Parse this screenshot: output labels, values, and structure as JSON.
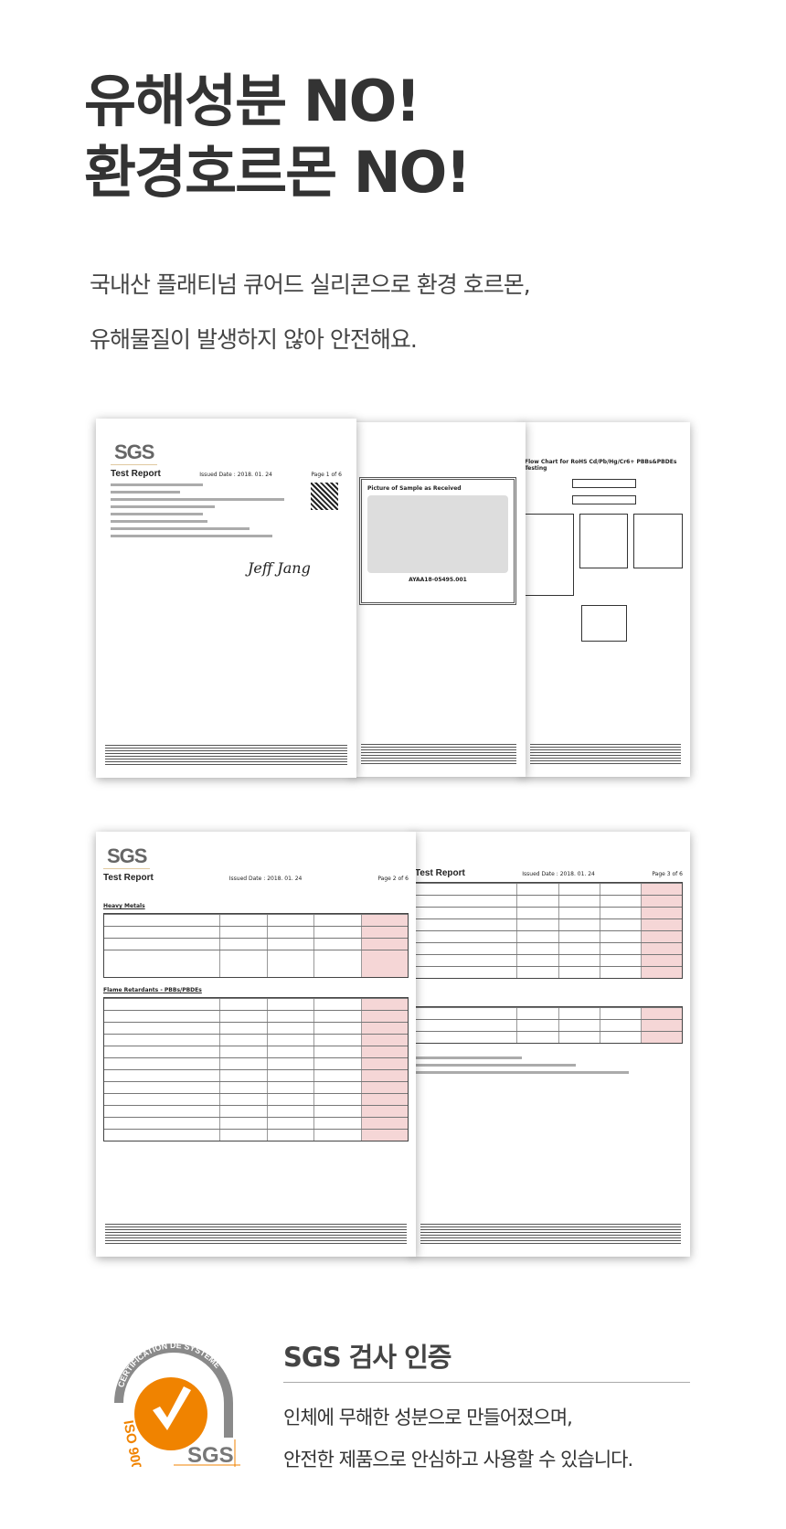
{
  "headline": {
    "line1": "유해성분 NO!",
    "line2": "환경호르몬 NO!"
  },
  "subtitle": {
    "line1": "국내산 플래티넘 큐어드 실리콘으로 환경 호르몬,",
    "line2": "유해물질이 발생하지 않아 안전해요."
  },
  "documents": {
    "logo": "SGS",
    "report_title": "Test Report",
    "issued_date": "Issued Date : 2018. 01. 24",
    "page1": "Page 1 of 6",
    "page2": "Page 2 of 6",
    "page3": "Page 3 of 6",
    "sample_id": "AYAA18-05495.001",
    "flow_title": "Flow Chart for RoHS Cd/Pb/Hg/Cr6+ PBBs&PBDEs Testing",
    "heavy_metals": "Heavy Metals",
    "flame_retardants": "Flame Retardants - PBBs/PBDEs",
    "picture_caption": "Picture of Sample as Received"
  },
  "certification": {
    "badge_text": "CERTIFICATION DE SYSTÈME",
    "badge_iso": "ISO 9001",
    "badge_logo": "SGS",
    "heading": "SGS 검사 인증",
    "line1": "인체에 무해한 성분으로 만들어졌으며,",
    "line2": "안전한 제품으로 안심하고 사용할 수 있습니다."
  },
  "colors": {
    "accent": "#f08300",
    "badge_gray": "#8a8a8a",
    "result_cell": "#f5d6d6"
  }
}
